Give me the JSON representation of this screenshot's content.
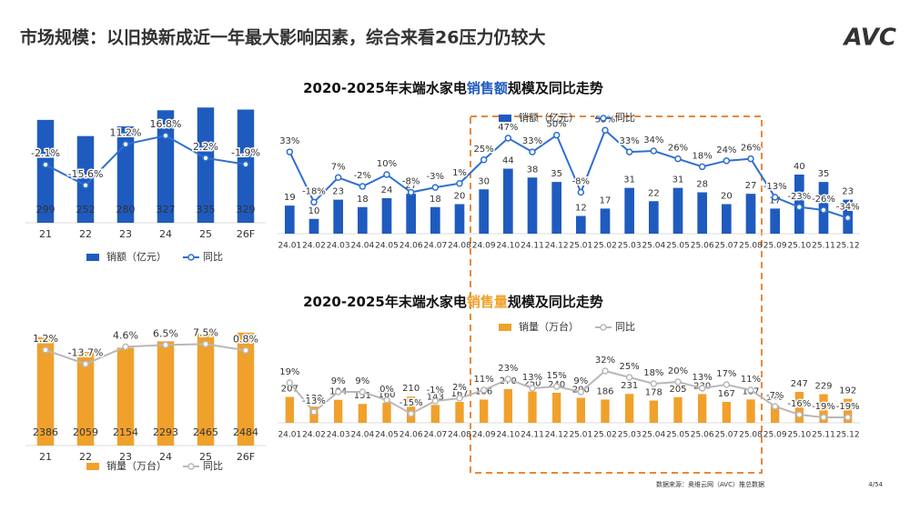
{
  "header": {
    "title": "市场规模：以旧换新成近一年最大影响因素，综合来看26压力仍较大",
    "logo": "AVC"
  },
  "chart_data": [
    {
      "type": "bar",
      "categories": [
        "21",
        "22",
        "23",
        "24",
        "25",
        "26F"
      ],
      "series": [
        {
          "name": "销额（亿元）",
          "color": "#1f5bbf",
          "values": [
            299,
            252,
            280,
            327,
            335,
            329
          ]
        },
        {
          "name": "同比",
          "color": "#2f6fd0",
          "axis": "y2",
          "values": [
            -2.1,
            -15.6,
            11.2,
            16.8,
            2.2,
            -1.9
          ],
          "value_labels": [
            "-2.1%",
            "-15.6%",
            "11.2%",
            "16.8%",
            "2.2%",
            "-1.9%"
          ]
        }
      ],
      "ylim": [
        0,
        370
      ],
      "y2lim": [
        -40,
        43
      ]
    },
    {
      "type": "bar",
      "title": [
        "2020-2025年末端水家电",
        "销售额",
        "规模及同比走势"
      ],
      "categories": [
        "24.01",
        "24.02",
        "24.03",
        "24.04",
        "24.05",
        "24.06",
        "24.07",
        "24.08",
        "24.09",
        "24.10",
        "24.11",
        "24.12",
        "25.01",
        "25.02",
        "25.03",
        "25.04",
        "25.05",
        "25.06",
        "25.07",
        "25.08",
        "25.09",
        "25.10",
        "25.11",
        "25.12"
      ],
      "series": [
        {
          "name": "销额（亿元）",
          "color": "#1f5bbf",
          "values": [
            19,
            10,
            23,
            18,
            24,
            27,
            18,
            20,
            30,
            44,
            38,
            35,
            12,
            17,
            31,
            22,
            31,
            28,
            20,
            27,
            17,
            40,
            35,
            23
          ]
        },
        {
          "name": "同比",
          "color": "#2f6fd0",
          "axis": "y2",
          "values": [
            33,
            -18,
            7,
            -2,
            10,
            -8,
            -3,
            1,
            25,
            47,
            33,
            50,
            -8,
            55,
            33,
            34,
            26,
            18,
            24,
            26,
            -13,
            -23,
            -26,
            -34
          ],
          "value_labels": [
            "33%",
            "-18%",
            "7%",
            "-2%",
            "10%",
            "-8%",
            "-3%",
            "1%",
            "25%",
            "47%",
            "33%",
            "50%",
            "-8%",
            "55%",
            "33%",
            "34%",
            "26%",
            "18%",
            "24%",
            "26%",
            "-13%",
            "-23%",
            "-26%",
            "-34%"
          ]
        }
      ],
      "ylim": [
        0,
        80
      ],
      "y2lim": [
        -50,
        70
      ]
    },
    {
      "type": "bar",
      "categories": [
        "21",
        "22",
        "23",
        "24",
        "25",
        "26F"
      ],
      "series": [
        {
          "name": "销量（万台）",
          "color": "#f0a12c",
          "values": [
            2386,
            2059,
            2154,
            2293,
            2465,
            2484
          ]
        },
        {
          "name": "同比",
          "color": "#b8b8b8",
          "axis": "y2",
          "values": [
            1.2,
            -13.7,
            4.6,
            6.5,
            7.5,
            0.8
          ],
          "value_labels": [
            "1.2%",
            "-13.7%",
            "4.6%",
            "6.5%",
            "7.5%",
            "0.8%"
          ]
        }
      ],
      "ylim": [
        0,
        2700
      ],
      "y2lim": [
        -100,
        30
      ]
    },
    {
      "type": "bar",
      "title": [
        "2020-2025年末端水家电",
        "销售量",
        "规模及同比走势"
      ],
      "categories": [
        "24.01",
        "24.02",
        "24.03",
        "24.04",
        "24.05",
        "24.06",
        "24.07",
        "24.08",
        "24.09",
        "24.10",
        "24.11",
        "24.12",
        "25.01",
        "25.02",
        "25.03",
        "25.04",
        "25.05",
        "25.06",
        "25.07",
        "25.08",
        "25.09",
        "25.10",
        "25.11",
        "25.12"
      ],
      "series": [
        {
          "name": "销量（万台）",
          "color": "#f0a12c",
          "values": [
            207,
            130,
            184,
            151,
            160,
            210,
            143,
            167,
            186,
            270,
            250,
            240,
            200,
            186,
            231,
            178,
            205,
            230,
            167,
            187,
            140,
            247,
            229,
            192
          ]
        },
        {
          "name": "同比",
          "color": "#b8b8b8",
          "axis": "y2",
          "values": [
            19,
            -13,
            9,
            9,
            0,
            -15,
            -1,
            2,
            11,
            23,
            13,
            15,
            9,
            32,
            25,
            18,
            20,
            13,
            17,
            11,
            -7,
            -16,
            -19,
            -19
          ],
          "value_labels": [
            "19%",
            "-13%",
            "9%",
            "9%",
            "0%",
            "-15%",
            "-1%",
            "2%",
            "11%",
            "23%",
            "13%",
            "15%",
            "9%",
            "32%",
            "25%",
            "18%",
            "20%",
            "13%",
            "17%",
            "11%",
            "-7%",
            "-16%",
            "-19%",
            "-19%"
          ]
        }
      ],
      "ylim": [
        0,
        800
      ],
      "y2lim": [
        -25,
        85
      ]
    }
  ],
  "footer": {
    "source": "数据来源：奥维云网（AVC）推总数据",
    "page": "4/54"
  }
}
